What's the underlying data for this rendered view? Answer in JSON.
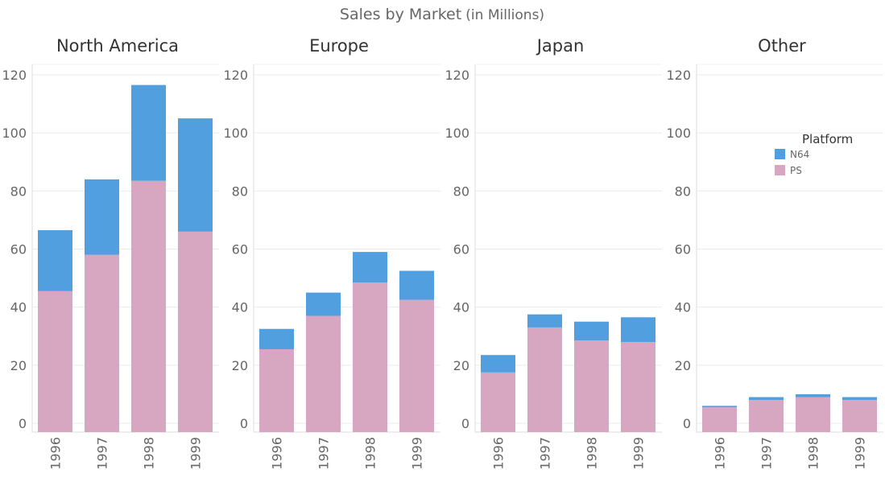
{
  "chart_data": {
    "type": "bar",
    "stacked": true,
    "title": "Sales by Market",
    "title_suffix": "(in Millions)",
    "categories": [
      "1996",
      "1997",
      "1998",
      "1999"
    ],
    "y_ticks": [
      "0",
      "20",
      "40",
      "60",
      "80",
      "100",
      "120"
    ],
    "ylim": [
      0,
      125
    ],
    "grid": true,
    "legend": {
      "title": "Platform",
      "placement": "right",
      "entries": [
        {
          "name": "N64",
          "color": "#519fdf"
        },
        {
          "name": "PS",
          "color": "#d7a6c1"
        }
      ]
    },
    "panels": [
      {
        "name": "North America",
        "series": [
          {
            "name": "PS",
            "values": [
              45.5,
              58.0,
              83.5,
              66.0
            ]
          },
          {
            "name": "N64",
            "values": [
              21.0,
              26.0,
              33.0,
              39.0
            ]
          }
        ]
      },
      {
        "name": "Europe",
        "series": [
          {
            "name": "PS",
            "values": [
              25.5,
              37.0,
              48.5,
              42.5
            ]
          },
          {
            "name": "N64",
            "values": [
              7.0,
              8.0,
              10.5,
              10.0
            ]
          }
        ]
      },
      {
        "name": "Japan",
        "series": [
          {
            "name": "PS",
            "values": [
              17.5,
              33.0,
              28.5,
              28.0
            ]
          },
          {
            "name": "N64",
            "values": [
              6.0,
              4.5,
              6.5,
              8.5
            ]
          }
        ]
      },
      {
        "name": "Other",
        "series": [
          {
            "name": "PS",
            "values": [
              5.5,
              8.0,
              9.0,
              8.0
            ]
          },
          {
            "name": "N64",
            "values": [
              0.5,
              1.0,
              1.0,
              1.0
            ]
          }
        ]
      }
    ]
  }
}
